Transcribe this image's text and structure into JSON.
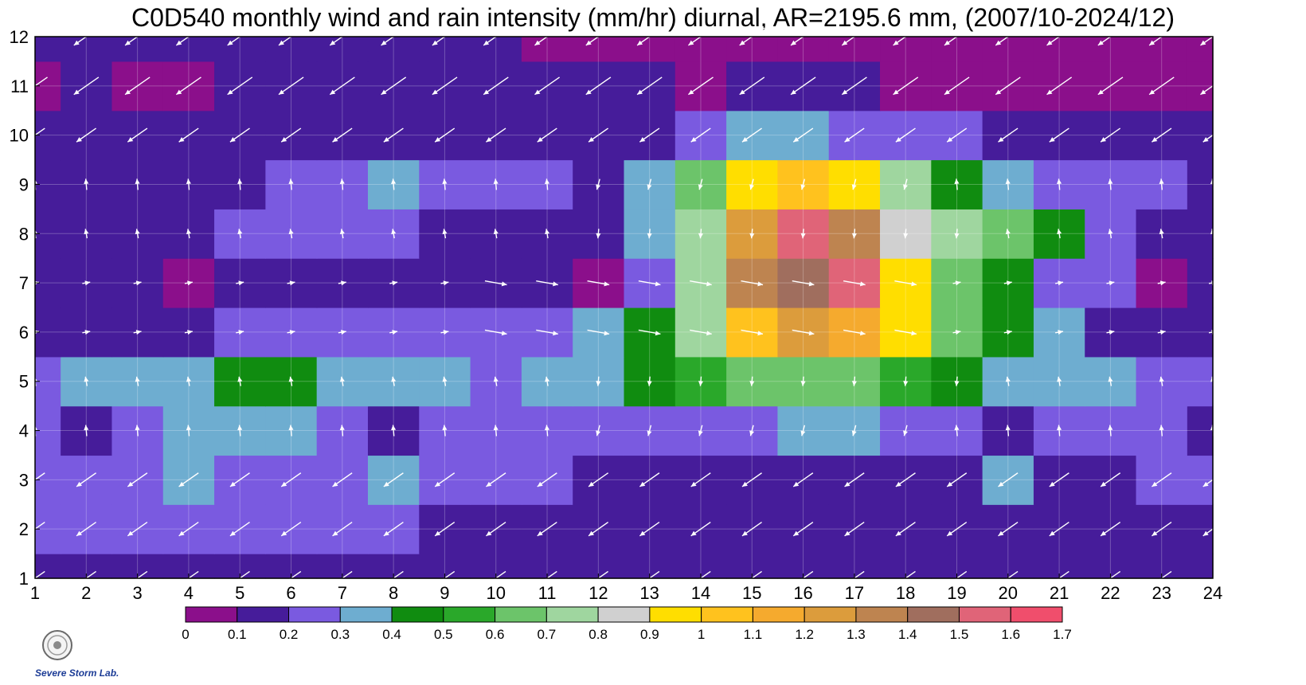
{
  "chart_data": {
    "type": "heatmap",
    "title": "C0D540 monthly wind and rain intensity (mm/hr) diurnal, AR=2195.6 mm, (2007/10-2024/12)",
    "x_ticks": [
      "1",
      "2",
      "3",
      "4",
      "5",
      "6",
      "7",
      "8",
      "9",
      "10",
      "11",
      "12",
      "13",
      "14",
      "15",
      "16",
      "17",
      "18",
      "19",
      "20",
      "21",
      "22",
      "23",
      "24"
    ],
    "y_ticks": [
      "1",
      "2",
      "3",
      "4",
      "5",
      "6",
      "7",
      "8",
      "9",
      "10",
      "11",
      "12"
    ],
    "xlim": [
      1,
      24
    ],
    "ylim": [
      1,
      12
    ],
    "hours": [
      1,
      2,
      3,
      4,
      5,
      6,
      7,
      8,
      9,
      10,
      11,
      12,
      13,
      14,
      15,
      16,
      17,
      18,
      19,
      20,
      21,
      22,
      23,
      24
    ],
    "months": [
      1,
      2,
      3,
      4,
      5,
      6,
      7,
      8,
      9,
      10,
      11,
      12
    ],
    "intensity": [
      [
        0.18,
        0.18,
        0.18,
        0.12,
        0.12,
        0.12,
        0.12,
        0.12,
        0.12,
        0.12,
        0.12,
        0.12,
        0.12,
        0.13,
        0.12,
        0.11,
        0.1,
        0.1,
        0.11,
        0.11,
        0.11,
        0.13,
        0.14,
        0.14
      ],
      [
        0.22,
        0.2,
        0.2,
        0.22,
        0.22,
        0.24,
        0.25,
        0.22,
        0.19,
        0.18,
        0.18,
        0.17,
        0.16,
        0.14,
        0.14,
        0.14,
        0.14,
        0.14,
        0.14,
        0.14,
        0.14,
        0.15,
        0.15,
        0.15
      ],
      [
        0.22,
        0.25,
        0.25,
        0.3,
        0.28,
        0.26,
        0.24,
        0.3,
        0.24,
        0.23,
        0.2,
        0.19,
        0.19,
        0.17,
        0.17,
        0.17,
        0.17,
        0.18,
        0.19,
        0.31,
        0.19,
        0.18,
        0.21,
        0.21
      ],
      [
        0.21,
        0.14,
        0.24,
        0.33,
        0.32,
        0.3,
        0.28,
        0.14,
        0.26,
        0.25,
        0.25,
        0.25,
        0.26,
        0.27,
        0.29,
        0.34,
        0.31,
        0.29,
        0.27,
        0.14,
        0.24,
        0.26,
        0.25,
        0.16
      ],
      [
        0.25,
        0.32,
        0.34,
        0.32,
        0.45,
        0.45,
        0.38,
        0.32,
        0.3,
        0.28,
        0.32,
        0.36,
        0.46,
        0.58,
        0.62,
        0.68,
        0.6,
        0.52,
        0.45,
        0.36,
        0.34,
        0.32,
        0.28,
        0.26
      ],
      [
        0.18,
        0.18,
        0.18,
        0.18,
        0.22,
        0.25,
        0.26,
        0.26,
        0.28,
        0.29,
        0.27,
        0.3,
        0.43,
        0.75,
        1.05,
        1.22,
        1.15,
        0.95,
        0.62,
        0.42,
        0.3,
        0.18,
        0.17,
        0.18
      ],
      [
        0.14,
        0.12,
        0.12,
        0.09,
        0.12,
        0.12,
        0.12,
        0.12,
        0.12,
        0.12,
        0.13,
        0.09,
        0.25,
        0.7,
        1.35,
        1.48,
        1.52,
        0.98,
        0.6,
        0.45,
        0.29,
        0.22,
        0.08,
        0.12
      ],
      [
        0.18,
        0.12,
        0.12,
        0.12,
        0.22,
        0.23,
        0.22,
        0.23,
        0.19,
        0.15,
        0.16,
        0.13,
        0.31,
        0.7,
        1.25,
        1.55,
        1.3,
        0.85,
        0.72,
        0.62,
        0.45,
        0.21,
        0.15,
        0.16
      ],
      [
        0.12,
        0.12,
        0.12,
        0.12,
        0.16,
        0.22,
        0.24,
        0.35,
        0.21,
        0.22,
        0.22,
        0.18,
        0.36,
        0.65,
        0.96,
        1.05,
        0.92,
        0.7,
        0.48,
        0.3,
        0.25,
        0.21,
        0.21,
        0.12
      ],
      [
        0.12,
        0.12,
        0.12,
        0.12,
        0.12,
        0.12,
        0.12,
        0.12,
        0.12,
        0.12,
        0.12,
        0.11,
        0.12,
        0.25,
        0.3,
        0.32,
        0.28,
        0.25,
        0.2,
        0.1,
        0.12,
        0.11,
        0.11,
        0.11
      ],
      [
        0.08,
        0.12,
        0.08,
        0.08,
        0.12,
        0.12,
        0.12,
        0.12,
        0.12,
        0.12,
        0.12,
        0.12,
        0.1,
        0.08,
        0.11,
        0.12,
        0.1,
        0.09,
        0.09,
        0.09,
        0.08,
        0.08,
        0.08,
        0.09
      ],
      [
        0.12,
        0.12,
        0.12,
        0.12,
        0.12,
        0.12,
        0.12,
        0.12,
        0.12,
        0.12,
        0.09,
        0.08,
        0.07,
        0.07,
        0.07,
        0.07,
        0.07,
        0.07,
        0.07,
        0.07,
        0.07,
        0.07,
        0.07,
        0.07
      ]
    ],
    "wind_direction": "mostly north-easterly (arrows toward lower-left) in cool season, westerly (arrows toward right) in summer afternoon",
    "colorbar": {
      "ticks": [
        "0",
        "0.1",
        "0.2",
        "0.3",
        "0.4",
        "0.5",
        "0.6",
        "0.7",
        "0.8",
        "0.9",
        "1",
        "1.1",
        "1.2",
        "1.3",
        "1.4",
        "1.5",
        "1.6",
        "1.7"
      ],
      "colors": [
        "#8b0f8b",
        "#461c9a",
        "#7a5ae0",
        "#6eadd0",
        "#108c10",
        "#2aa82a",
        "#6cc46a",
        "#9fd69f",
        "#d0d0d0",
        "#ffde00",
        "#ffc21e",
        "#f5aa2e",
        "#dc9c3c",
        "#be8450",
        "#a06e5e",
        "#e06478",
        "#f04e6c",
        "#dc2a3c"
      ]
    },
    "contour_line_color": "#f0a020",
    "arrow_color": "#ffffff"
  },
  "logo": {
    "text": "Severe Storm Lab."
  }
}
